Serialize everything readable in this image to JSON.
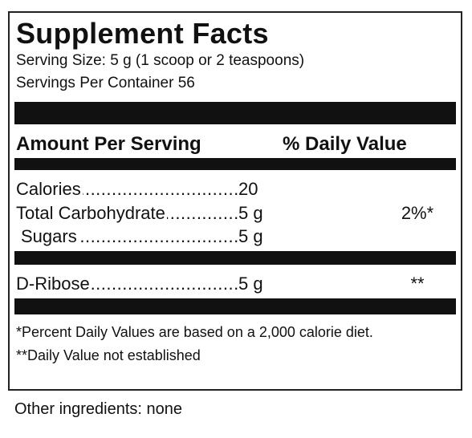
{
  "title": "Supplement Facts",
  "serving_size": "Serving Size: 5 g (1 scoop or 2 teaspoons)",
  "servings_per_container": "Servings Per Container 56",
  "header": {
    "amount": "Amount Per Serving",
    "daily_value": "% Daily Value"
  },
  "rows": [
    {
      "name": "Calories",
      "amount": "20",
      "daily_value": null
    },
    {
      "name": "Total Carbohydrate",
      "amount": "5 g",
      "daily_value": "2%*"
    },
    {
      "name": "Sugars",
      "amount": "5 g",
      "daily_value": null
    },
    {
      "name": "D-Ribose",
      "amount": "5 g",
      "daily_value": "**"
    }
  ],
  "footnotes": [
    "*Percent Daily Values are based on a 2,000 calorie diet.",
    "**Daily Value not established"
  ],
  "other_ingredients": "Other ingredients: none"
}
